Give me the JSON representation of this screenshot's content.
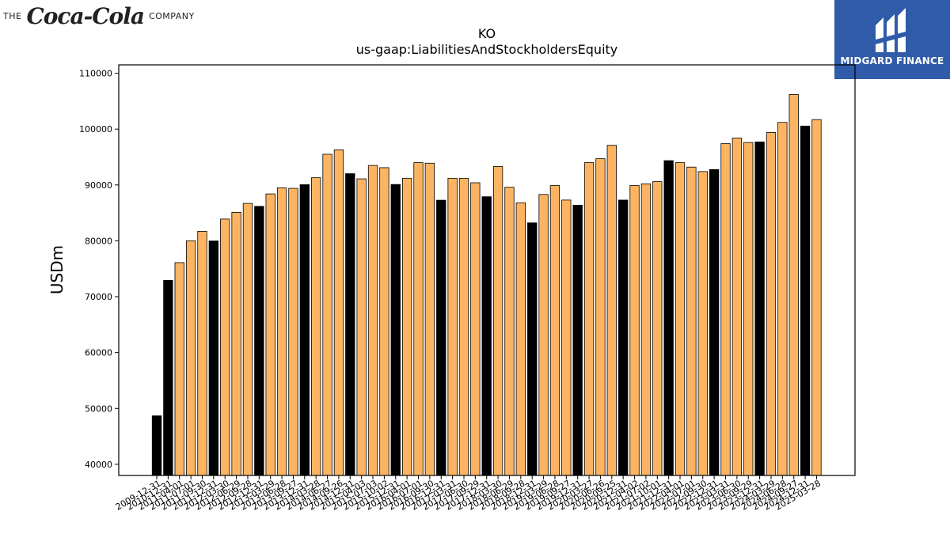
{
  "logos": {
    "left_prefix": "THE",
    "left_script": "Coca-Cola",
    "left_suffix": "COMPANY",
    "right_brand": "MIDGARD FINANCE"
  },
  "colors": {
    "highlight": "#000000",
    "default": "#fdb462",
    "edge": "#000000",
    "brand_bg": "#2f5ba8"
  },
  "chart_data": {
    "type": "bar",
    "title": "KO",
    "subtitle": "us-gaap:LiabilitiesAndStockholdersEquity",
    "xlabel": "",
    "ylabel": "USDm",
    "ylim": [
      38000,
      111500
    ],
    "yticks": [
      40000,
      50000,
      60000,
      70000,
      80000,
      90000,
      100000,
      110000
    ],
    "grid": false,
    "categories": [
      "2009-12-31",
      "2010-12-31",
      "2011-04-01",
      "2011-07-01",
      "2011-09-30",
      "2011-12-31",
      "2012-03-30",
      "2012-06-29",
      "2012-09-28",
      "2012-12-31",
      "2013-03-29",
      "2013-06-28",
      "2013-09-27",
      "2013-12-31",
      "2014-03-28",
      "2014-06-27",
      "2014-09-26",
      "2014-12-31",
      "2015-04-03",
      "2015-07-03",
      "2015-10-02",
      "2015-12-31",
      "2016-04-01",
      "2016-07-01",
      "2016-09-30",
      "2016-12-31",
      "2017-03-31",
      "2017-06-30",
      "2017-09-29",
      "2017-12-31",
      "2018-03-30",
      "2018-06-29",
      "2018-09-28",
      "2018-12-31",
      "2019-03-29",
      "2019-06-28",
      "2019-09-27",
      "2019-12-31",
      "2020-03-27",
      "2020-06-26",
      "2020-09-25",
      "2020-12-31",
      "2021-04-02",
      "2021-07-02",
      "2021-10-01",
      "2021-12-31",
      "2022-04-01",
      "2022-07-01",
      "2022-09-30",
      "2022-12-31",
      "2023-03-31",
      "2023-06-30",
      "2023-09-29",
      "2023-12-31",
      "2024-03-29",
      "2024-06-28",
      "2024-09-27",
      "2024-12-31",
      "2025-03-28"
    ],
    "values": [
      48671,
      72921,
      76100,
      80000,
      81700,
      79974,
      83900,
      85100,
      86700,
      86174,
      88400,
      89500,
      89400,
      90055,
      91300,
      95500,
      96300,
      92023,
      91100,
      93500,
      93100,
      90093,
      91200,
      94000,
      93900,
      87270,
      91200,
      91200,
      90400,
      87896,
      93300,
      89600,
      86800,
      83216,
      88300,
      89900,
      87300,
      86381,
      94000,
      94700,
      97100,
      87296,
      89900,
      90200,
      90600,
      94354,
      94000,
      93200,
      92400,
      92763,
      97400,
      98400,
      97600,
      97703,
      99400,
      101200,
      106200,
      100549,
      101700
    ],
    "highlighted": [
      true,
      true,
      false,
      false,
      false,
      true,
      false,
      false,
      false,
      true,
      false,
      false,
      false,
      true,
      false,
      false,
      false,
      true,
      false,
      false,
      false,
      true,
      false,
      false,
      false,
      true,
      false,
      false,
      false,
      true,
      false,
      false,
      false,
      true,
      false,
      false,
      false,
      true,
      false,
      false,
      false,
      true,
      false,
      false,
      false,
      true,
      false,
      false,
      false,
      true,
      false,
      false,
      false,
      true,
      false,
      false,
      false,
      true,
      false
    ]
  }
}
